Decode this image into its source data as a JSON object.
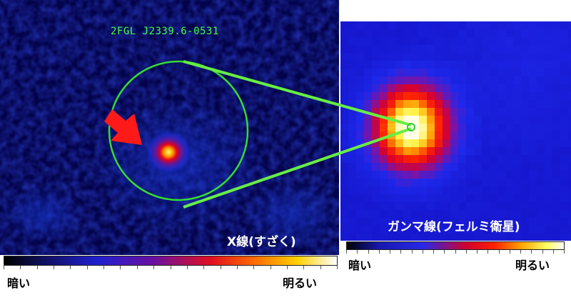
{
  "xray_panel": {
    "source_label": "2FGL J2339.6-0531",
    "caption": "X線(すざく)",
    "colorbar": {
      "dark_label": "暗い",
      "bright_label": "明るい"
    }
  },
  "gamma_panel": {
    "caption": "ガンマ線(フェルミ衛星)",
    "colorbar": {
      "dark_label": "暗い",
      "bright_label": "明るい"
    }
  },
  "colors": {
    "circle": "#33dd33",
    "connector": "#66ee44",
    "arrow": "#ff1a1a",
    "source_label": "#44ff44"
  },
  "icons": {
    "pointer": "red-arrow-icon"
  }
}
